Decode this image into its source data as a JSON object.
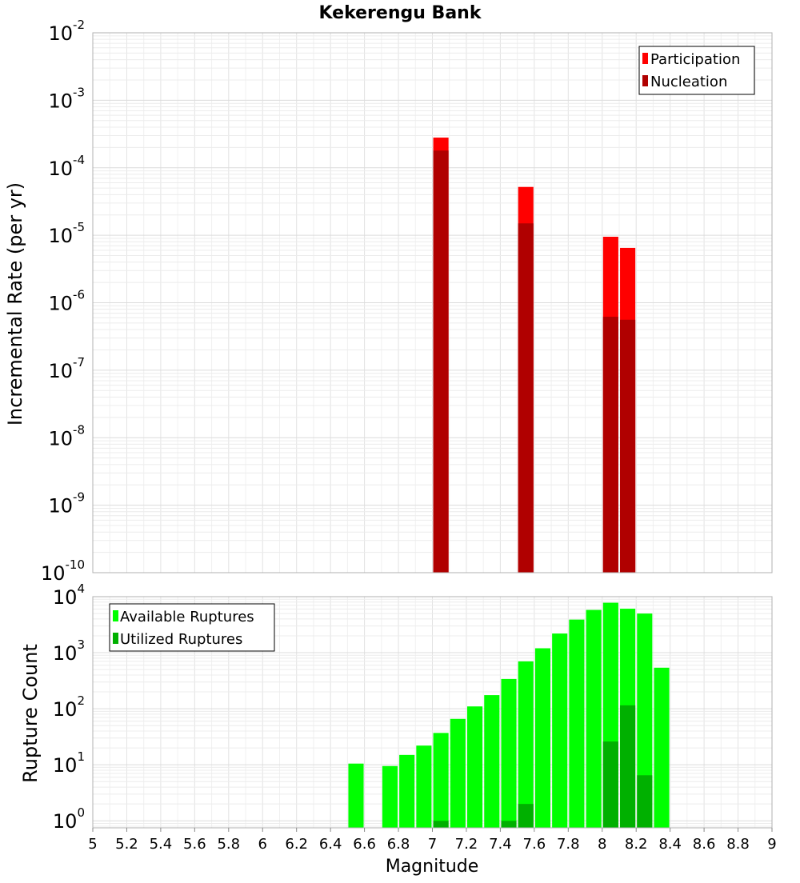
{
  "chart_data": [
    {
      "type": "bar",
      "title": "Kekerengu Bank",
      "ylabel": "Incremental Rate (per yr)",
      "xlabel": "",
      "xlim": [
        5,
        9
      ],
      "ylim": [
        1e-10,
        0.01
      ],
      "yscale": "log",
      "ytick_exponents": [
        "-10",
        "-9",
        "-8",
        "-7",
        "-6",
        "-5",
        "-4",
        "-3",
        "-2"
      ],
      "ytick_base": "10",
      "grid": true,
      "legend_position": "top-right",
      "bar_width": 0.09,
      "series": [
        {
          "name": "Participation",
          "color": "#ff0000",
          "points": [
            {
              "x": 7.05,
              "y": 0.00028
            },
            {
              "x": 7.55,
              "y": 5.2e-05
            },
            {
              "x": 8.05,
              "y": 9.5e-06
            },
            {
              "x": 8.15,
              "y": 6.5e-06
            }
          ]
        },
        {
          "name": "Nucleation",
          "color": "#b00000",
          "points": [
            {
              "x": 7.05,
              "y": 0.00018
            },
            {
              "x": 7.55,
              "y": 1.5e-05
            },
            {
              "x": 8.05,
              "y": 6.2e-07
            },
            {
              "x": 8.15,
              "y": 5.6e-07
            }
          ]
        }
      ]
    },
    {
      "type": "bar",
      "title": "",
      "ylabel": "Rupture Count",
      "xlabel": "Magnitude",
      "xlim": [
        5,
        9
      ],
      "ylim": [
        0.75,
        10000
      ],
      "yscale": "log",
      "ytick_exponents": [
        "0",
        "1",
        "2",
        "3",
        "4"
      ],
      "ytick_base": "10",
      "xticks": [
        "5",
        "5.2",
        "5.4",
        "5.6",
        "5.8",
        "6",
        "6.2",
        "6.4",
        "6.6",
        "6.8",
        "7",
        "7.2",
        "7.4",
        "7.6",
        "7.8",
        "8",
        "8.2",
        "8.4",
        "8.6",
        "8.8",
        "9"
      ],
      "grid": true,
      "legend_position": "top-left",
      "bar_width": 0.09,
      "series": [
        {
          "name": "Available Ruptures",
          "color": "#00ff00",
          "points": [
            {
              "x": 6.55,
              "y": 10.5
            },
            {
              "x": 6.75,
              "y": 9.5
            },
            {
              "x": 6.85,
              "y": 15
            },
            {
              "x": 6.95,
              "y": 22
            },
            {
              "x": 7.05,
              "y": 37
            },
            {
              "x": 7.15,
              "y": 66
            },
            {
              "x": 7.25,
              "y": 110
            },
            {
              "x": 7.35,
              "y": 175
            },
            {
              "x": 7.45,
              "y": 340
            },
            {
              "x": 7.55,
              "y": 700
            },
            {
              "x": 7.65,
              "y": 1200
            },
            {
              "x": 7.75,
              "y": 2200
            },
            {
              "x": 7.85,
              "y": 3900
            },
            {
              "x": 7.95,
              "y": 5800
            },
            {
              "x": 8.05,
              "y": 7800
            },
            {
              "x": 8.15,
              "y": 6100
            },
            {
              "x": 8.25,
              "y": 5000
            },
            {
              "x": 8.35,
              "y": 540
            }
          ]
        },
        {
          "name": "Utilized Ruptures",
          "color": "#00b000",
          "points": [
            {
              "x": 7.05,
              "y": 1
            },
            {
              "x": 7.45,
              "y": 1
            },
            {
              "x": 7.55,
              "y": 2
            },
            {
              "x": 8.05,
              "y": 26
            },
            {
              "x": 8.15,
              "y": 115
            },
            {
              "x": 8.25,
              "y": 6.5
            }
          ]
        }
      ]
    }
  ]
}
